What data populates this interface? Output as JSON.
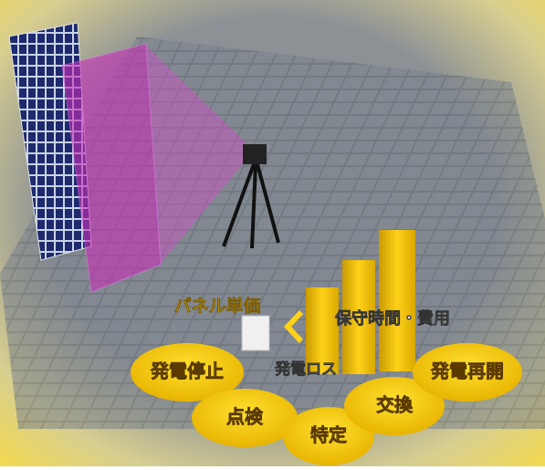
{
  "labels": {
    "panel_price": "パネル単価",
    "maintenance": "保守時間・費用",
    "loss": "発電ロス"
  },
  "steps": [
    "発電停止",
    "点検",
    "特定",
    "交換",
    "発電再開"
  ]
}
